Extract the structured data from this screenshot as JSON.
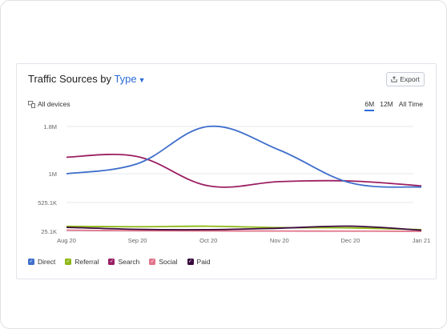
{
  "widget": {
    "title_prefix": "Traffic Sources by",
    "title_link": "Type",
    "export_label": "Export",
    "devices_label": "All devices",
    "ranges": [
      {
        "label": "6M",
        "active": true
      },
      {
        "label": "12M",
        "active": false
      },
      {
        "label": "All Time",
        "active": false
      }
    ]
  },
  "colors": {
    "Direct": "#3f6fcb",
    "Referral": "#8fb817",
    "Search": "#9b1e63",
    "Social": "#e2758a",
    "Paid": "#3a0a3e"
  },
  "chart_data": {
    "type": "line",
    "title": "Traffic Sources by Type",
    "x": [
      "Aug 20",
      "Sep 20",
      "Oct 20",
      "Nov 20",
      "Dec 20",
      "Jan 21"
    ],
    "ticks": [
      {
        "label": "1.8M",
        "value": 1800000
      },
      {
        "label": "1M",
        "value": 1000000
      },
      {
        "label": "525.1K",
        "value": 525100
      },
      {
        "label": "25.1K",
        "value": 25100
      }
    ],
    "ylim": [
      25100,
      1800000
    ],
    "series": [
      {
        "name": "Direct",
        "values": [
          1000000,
          1170000,
          1800000,
          1400000,
          850000,
          780000
        ]
      },
      {
        "name": "Referral",
        "values": [
          112000,
          105000,
          114000,
          90000,
          85000,
          55000
        ]
      },
      {
        "name": "Search",
        "values": [
          1280000,
          1290000,
          800000,
          870000,
          880000,
          800000
        ]
      },
      {
        "name": "Social",
        "values": [
          45000,
          35000,
          33000,
          30000,
          29000,
          25100
        ]
      },
      {
        "name": "Paid",
        "values": [
          95000,
          60000,
          55000,
          80000,
          115000,
          45000
        ]
      }
    ],
    "grid": true,
    "legend": "bottom-left"
  }
}
